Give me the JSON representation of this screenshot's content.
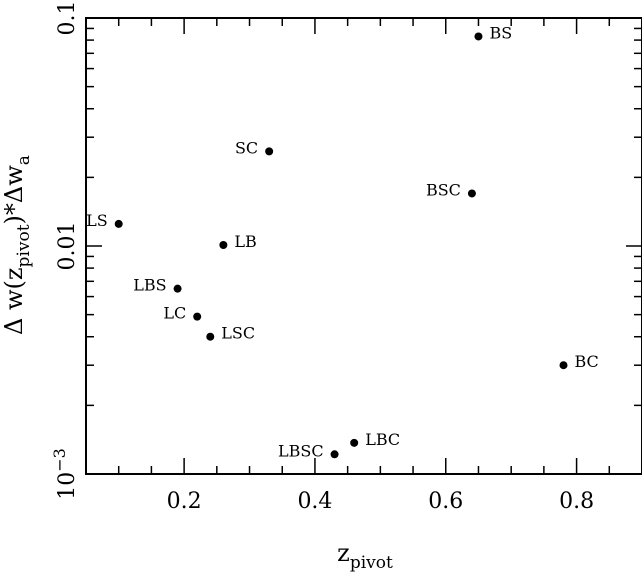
{
  "chart_data": {
    "type": "scatter",
    "xlabel": {
      "main": "z",
      "sub": "pivot"
    },
    "ylabel": {
      "p1": "Δ w(z",
      "sub1": "pivot",
      "p2": ")*Δw",
      "sub2": "a"
    },
    "xlim": [
      0.05,
      0.9
    ],
    "ylim": [
      0.001,
      0.1
    ],
    "yscale": "log",
    "grid": false,
    "x_ticks": [
      {
        "value": 0.2,
        "label": "0.2"
      },
      {
        "value": 0.4,
        "label": "0.4"
      },
      {
        "value": 0.6,
        "label": "0.6"
      },
      {
        "value": 0.8,
        "label": "0.8"
      }
    ],
    "y_ticks": [
      {
        "value": 0.001,
        "label": "10",
        "exp": "−3"
      },
      {
        "value": 0.01,
        "label": "0.01"
      },
      {
        "value": 0.1,
        "label": "0.1"
      }
    ],
    "points": [
      {
        "label": "BS",
        "x": 0.65,
        "y": 0.083,
        "label_side": "right"
      },
      {
        "label": "SC",
        "x": 0.33,
        "y": 0.026,
        "label_side": "left"
      },
      {
        "label": "BSC",
        "x": 0.64,
        "y": 0.017,
        "label_side": "left"
      },
      {
        "label": "LS",
        "x": 0.1,
        "y": 0.0125,
        "label_side": "left"
      },
      {
        "label": "LB",
        "x": 0.26,
        "y": 0.0101,
        "label_side": "right"
      },
      {
        "label": "LBS",
        "x": 0.19,
        "y": 0.0065,
        "label_side": "left"
      },
      {
        "label": "LC",
        "x": 0.22,
        "y": 0.0049,
        "label_side": "left"
      },
      {
        "label": "LSC",
        "x": 0.24,
        "y": 0.004,
        "label_side": "right"
      },
      {
        "label": "BC",
        "x": 0.78,
        "y": 0.003,
        "label_side": "right"
      },
      {
        "label": "LBC",
        "x": 0.46,
        "y": 0.00137,
        "label_side": "right"
      },
      {
        "label": "LBSC",
        "x": 0.43,
        "y": 0.00122,
        "label_side": "left"
      }
    ]
  }
}
